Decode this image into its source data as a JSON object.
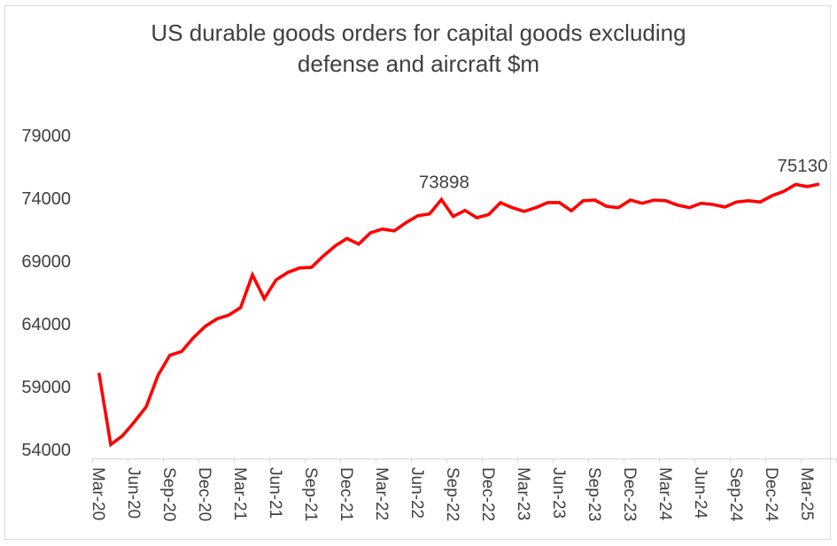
{
  "title": {
    "line1": "US durable goods orders for capital goods excluding",
    "line2": "defense and aircraft $m"
  },
  "chart_data": {
    "type": "line",
    "title": "US durable goods orders for capital goods excluding defense and aircraft $m",
    "grid": false,
    "legend_position": "none",
    "line_color": "#ff0000",
    "axis_color": "#d9d9d9",
    "text_color": "#404040",
    "ylim": [
      54000,
      79000
    ],
    "y_ticks": [
      79000,
      74000,
      69000,
      64000,
      59000,
      54000
    ],
    "x_tick_labels": [
      "Mar-20",
      "Jun-20",
      "Sep-20",
      "Dec-20",
      "Mar-21",
      "Jun-21",
      "Sep-21",
      "Dec-21",
      "Mar-22",
      "Jun-22",
      "Sep-22",
      "Dec-22",
      "Mar-23",
      "Jun-23",
      "Sep-23",
      "Dec-23",
      "Mar-24",
      "Jun-24",
      "Sep-24",
      "Dec-24",
      "Mar-25"
    ],
    "x": [
      "Mar-20",
      "Apr-20",
      "May-20",
      "Jun-20",
      "Jul-20",
      "Aug-20",
      "Sep-20",
      "Oct-20",
      "Nov-20",
      "Dec-20",
      "Jan-21",
      "Feb-21",
      "Mar-21",
      "Apr-21",
      "May-21",
      "Jun-21",
      "Jul-21",
      "Aug-21",
      "Sep-21",
      "Oct-21",
      "Nov-21",
      "Dec-21",
      "Jan-22",
      "Feb-22",
      "Mar-22",
      "Apr-22",
      "May-22",
      "Jun-22",
      "Jul-22",
      "Aug-22",
      "Sep-22",
      "Oct-22",
      "Nov-22",
      "Dec-22",
      "Jan-23",
      "Feb-23",
      "Mar-23",
      "Apr-23",
      "May-23",
      "Jun-23",
      "Jul-23",
      "Aug-23",
      "Sep-23",
      "Oct-23",
      "Nov-23",
      "Dec-23",
      "Jan-24",
      "Feb-24",
      "Mar-24",
      "Apr-24",
      "May-24",
      "Jun-24",
      "Jul-24",
      "Aug-24",
      "Sep-24",
      "Oct-24",
      "Nov-24",
      "Dec-24",
      "Jan-25",
      "Feb-25",
      "Mar-25",
      "Apr-25"
    ],
    "values": [
      60100,
      54400,
      55100,
      56200,
      57400,
      59900,
      61500,
      61800,
      62900,
      63800,
      64400,
      64700,
      65300,
      67900,
      66000,
      67500,
      68100,
      68450,
      68500,
      69400,
      70200,
      70800,
      70350,
      71250,
      71550,
      71400,
      72050,
      72600,
      72750,
      73898,
      72550,
      73030,
      72450,
      72700,
      73650,
      73250,
      72950,
      73250,
      73650,
      73650,
      73000,
      73800,
      73850,
      73350,
      73250,
      73850,
      73600,
      73850,
      73800,
      73450,
      73250,
      73600,
      73500,
      73300,
      73700,
      73800,
      73700,
      74200,
      74550,
      75100,
      74920,
      75130
    ],
    "annotations": [
      {
        "at": "Aug-22",
        "text": "73898"
      },
      {
        "at": "Apr-25",
        "text": "75130"
      }
    ]
  }
}
